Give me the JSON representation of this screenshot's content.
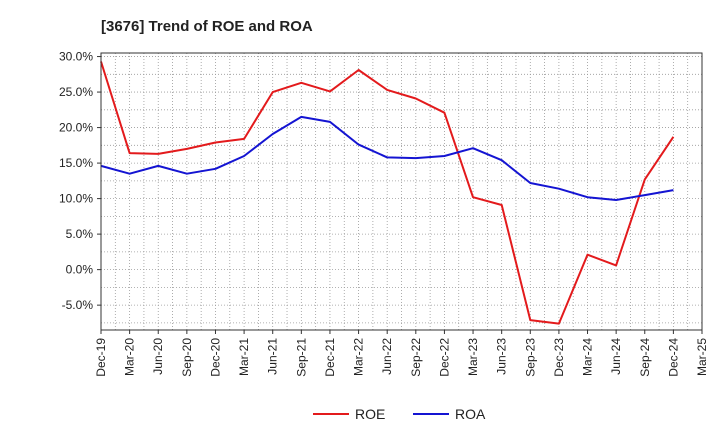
{
  "chart_data": {
    "type": "line",
    "title": "[3676]  Trend of ROE and ROA",
    "xlabel": "",
    "ylabel": "",
    "categories": [
      "Dec-19",
      "Mar-20",
      "Jun-20",
      "Sep-20",
      "Dec-20",
      "Mar-21",
      "Jun-21",
      "Sep-21",
      "Dec-21",
      "Mar-22",
      "Jun-22",
      "Sep-22",
      "Dec-22",
      "Mar-23",
      "Jun-23",
      "Sep-23",
      "Dec-23",
      "Mar-24",
      "Jun-24",
      "Sep-24",
      "Dec-24",
      "Mar-25"
    ],
    "y_ticks": [
      "30.0%",
      "25.0%",
      "20.0%",
      "15.0%",
      "10.0%",
      "5.0%",
      "0.0%",
      "-5.0%"
    ],
    "y_tick_values": [
      30,
      25,
      20,
      15,
      10,
      5,
      0,
      -5
    ],
    "ylim": [
      -8.5,
      30.5
    ],
    "grid": true,
    "legend_position": "bottom-center",
    "series": [
      {
        "name": "ROE",
        "color": "#e31a1c",
        "values": [
          29.3,
          16.4,
          16.3,
          17.0,
          17.9,
          18.4,
          25.0,
          26.3,
          25.1,
          28.1,
          25.3,
          24.1,
          22.1,
          10.2,
          9.1,
          -7.1,
          -7.6,
          2.1,
          0.6,
          12.7,
          18.7,
          null
        ]
      },
      {
        "name": "ROA",
        "color": "#1414d2",
        "values": [
          14.6,
          13.5,
          14.6,
          13.5,
          14.2,
          16.0,
          19.1,
          21.5,
          20.8,
          17.6,
          15.8,
          15.7,
          16.0,
          17.1,
          15.4,
          12.2,
          11.4,
          10.2,
          9.8,
          10.5,
          11.2,
          null
        ]
      }
    ]
  }
}
